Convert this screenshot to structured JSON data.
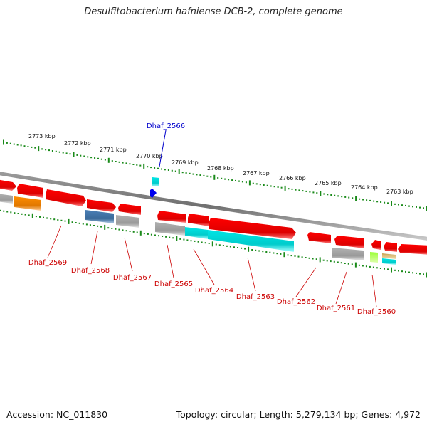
{
  "title": "Desulfitobacterium hafniense DCB-2, complete genome",
  "footer": {
    "accession": "Accession: NC_011830",
    "topology": "Topology: circular; Length: 5,279,134 bp; Genes: 4,972"
  },
  "kbp_labels": [
    "2773 kbp",
    "2772 kbp",
    "2771 kbp",
    "2770 kbp",
    "2769 kbp",
    "2768 kbp",
    "2767 kbp",
    "2766 kbp",
    "2765 kbp",
    "2764 kbp",
    "2763 kbp"
  ],
  "gene_labels": [
    "Dhaf_2569",
    "Dhaf_2568",
    "Dhaf_2567",
    "Dhaf_2565",
    "Dhaf_2564",
    "Dhaf_2563",
    "Dhaf_2562",
    "Dhaf_2561",
    "Dhaf_2560"
  ],
  "highlight_label": "Dhaf_2566",
  "colors": {
    "forward_gene": "#ff0000",
    "backbone": "#808080",
    "ruler": "#1a8a1a",
    "gene_label": "#cc0000",
    "highlight": "#0000cc",
    "grey_track": "#b0b0b0",
    "orange_track": "#ff8c00",
    "steelblue_track": "#4a7fb5",
    "cyan_track": "#00e5e5",
    "green_track": "#99ff33",
    "tan_track": "#c8a050"
  }
}
